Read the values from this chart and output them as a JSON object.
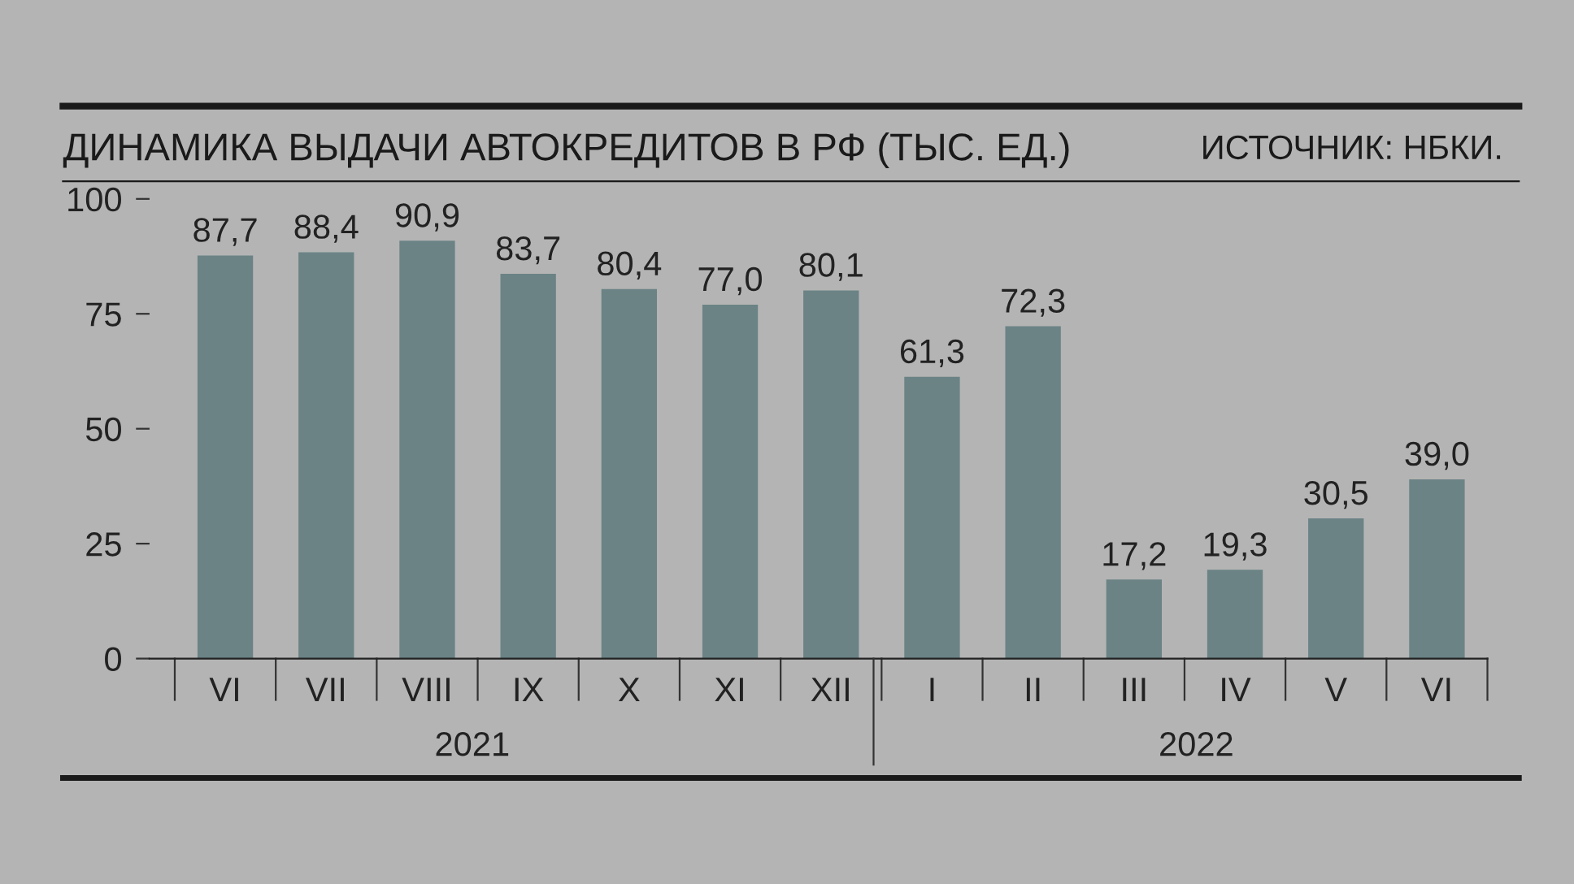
{
  "chart_data": {
    "type": "bar",
    "title": "ДИНАМИКА ВЫДАЧИ АВТОКРЕДИТОВ В РФ (ТЫС. ЕД.)",
    "categories": [
      "VI",
      "VII",
      "VIII",
      "IX",
      "X",
      "XI",
      "XII",
      "I",
      "II",
      "III",
      "IV",
      "V",
      "VI"
    ],
    "values": [
      87.7,
      88.4,
      90.9,
      83.7,
      80.4,
      77.0,
      80.1,
      61.3,
      72.3,
      17.2,
      19.3,
      30.5,
      39.0
    ],
    "value_labels": [
      "87,7",
      "88,4",
      "90,9",
      "83,7",
      "80,4",
      "77,0",
      "80,1",
      "61,3",
      "72,3",
      "17,2",
      "19,3",
      "30,5",
      "39,0"
    ],
    "color": "#6b8385",
    "ylim": [
      0,
      100
    ],
    "yticks": [
      0,
      25,
      50,
      75,
      100
    ],
    "grid": false,
    "annotations": [
      "ИСТОЧНИК: НБКИ.",
      "2021",
      "2022"
    ]
  }
}
